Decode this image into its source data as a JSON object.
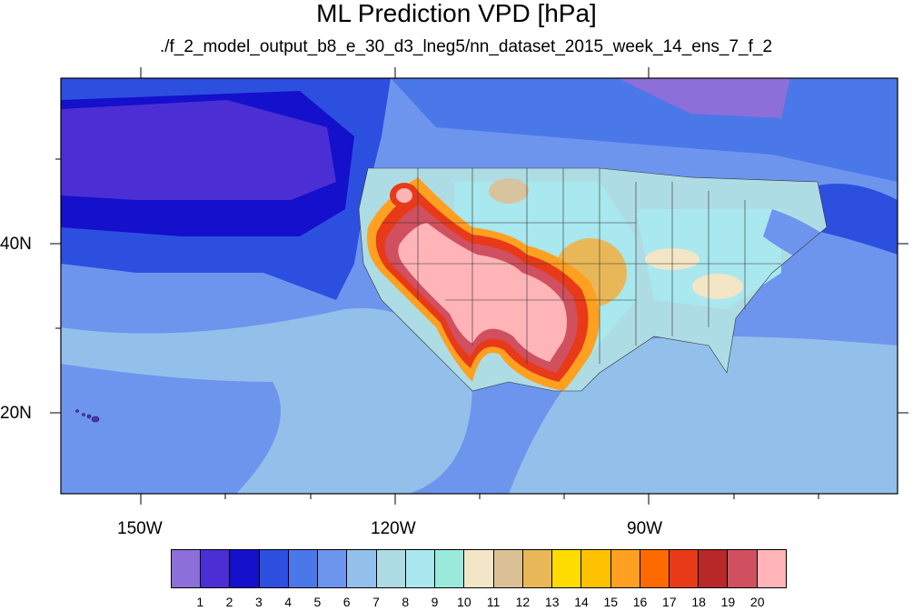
{
  "title": "ML Prediction VPD [hPa]",
  "subtitle": "./f_2_model_output_b8_e_30_d3_lneg5/nn_dataset_2015_week_14_ens_7_f_2",
  "axes": {
    "x_ticks": [
      "150W",
      "120W",
      "90W"
    ],
    "y_ticks": [
      "40N",
      "20N"
    ]
  },
  "colorbar": {
    "colors": [
      "#8c6fd9",
      "#4b2fd4",
      "#1410cc",
      "#2d4fe0",
      "#4b78e8",
      "#6e95ee",
      "#93c0ea",
      "#aedce4",
      "#a8e8ee",
      "#9aeadc",
      "#f3e6c6",
      "#dcc096",
      "#e8b858",
      "#ffdc00",
      "#ffc200",
      "#ffa020",
      "#ff6a00",
      "#e83a18",
      "#b82828",
      "#d05060",
      "#ffb4b8"
    ],
    "labels": [
      "1",
      "2",
      "3",
      "4",
      "5",
      "6",
      "7",
      "8",
      "9",
      "10",
      "11",
      "12",
      "13",
      "14",
      "15",
      "16",
      "17",
      "18",
      "19",
      "20"
    ]
  }
}
